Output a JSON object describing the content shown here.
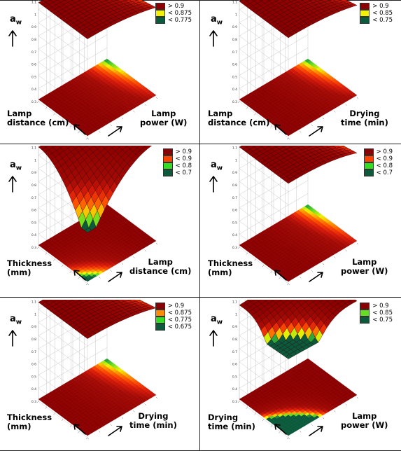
{
  "response_label": "a",
  "response_sub": "w",
  "colors": {
    "dark_red": "#8b0000",
    "red": "#e11",
    "orange": "#ff8c00",
    "yellow": "#f2f200",
    "lime": "#33dd22",
    "green": "#1f7a3e",
    "dark_green": "#0b5a3c"
  },
  "chart_data": [
    {
      "type": "surface",
      "xlabel": "Lamp power (W)",
      "ylabel": "Lamp distance (cm)",
      "zlabel": "aw",
      "legend": [
        {
          "label": "> 0.9",
          "color": "#8b0000"
        },
        {
          "label": "< 0.875",
          "color": "#f2f200"
        },
        {
          "label": "< 0.775",
          "color": "#0b5a3c"
        }
      ],
      "z_ticks": [
        "0.3",
        "0.4",
        "0.5",
        "0.6",
        "0.7",
        "0.8",
        "0.9",
        "1",
        "1.1"
      ]
    },
    {
      "type": "surface",
      "xlabel": "Drying time (min)",
      "ylabel": "Lamp distance (cm)",
      "zlabel": "aw",
      "legend": [
        {
          "label": "> 0.9",
          "color": "#8b0000"
        },
        {
          "label": "< 0.85",
          "color": "#f2f200"
        },
        {
          "label": "< 0.75",
          "color": "#0b5a3c"
        }
      ],
      "z_ticks": [
        "0.3",
        "0.4",
        "0.5",
        "0.6",
        "0.7",
        "0.8",
        "0.9",
        "1",
        "1.1"
      ]
    },
    {
      "type": "surface",
      "xlabel": "Lamp distance (cm)",
      "ylabel": "Thickness (mm)",
      "zlabel": "aw",
      "legend": [
        {
          "label": "> 0.9",
          "color": "#8b0000"
        },
        {
          "label": "< 0.9",
          "color": "#ff4400"
        },
        {
          "label": "< 0.8",
          "color": "#33dd22"
        },
        {
          "label": "< 0.7",
          "color": "#0b5a3c"
        }
      ],
      "z_ticks": [
        "0.3",
        "0.4",
        "0.5",
        "0.6",
        "0.7",
        "0.8",
        "0.9",
        "1",
        "1.1"
      ]
    },
    {
      "type": "surface",
      "xlabel": "Lamp power (W)",
      "ylabel": "Thickness (mm)",
      "zlabel": "aw",
      "legend": [
        {
          "label": "> 0.9",
          "color": "#8b0000"
        },
        {
          "label": "< 0.9",
          "color": "#ff4400"
        },
        {
          "label": "< 0.8",
          "color": "#33dd22"
        },
        {
          "label": "< 0.7",
          "color": "#0b5a3c"
        }
      ],
      "z_ticks": [
        "0.3",
        "0.4",
        "0.5",
        "0.6",
        "0.7",
        "0.8",
        "0.9",
        "1",
        "1.1"
      ]
    },
    {
      "type": "surface",
      "xlabel": "Drying time (min)",
      "ylabel": "Thickness (mm)",
      "zlabel": "aw",
      "legend": [
        {
          "label": "> 0.9",
          "color": "#8b0000"
        },
        {
          "label": "< 0.875",
          "color": "#ff8c00"
        },
        {
          "label": "< 0.775",
          "color": "#33dd22"
        },
        {
          "label": "< 0.675",
          "color": "#0b5a3c"
        }
      ],
      "z_ticks": [
        "0.3",
        "0.4",
        "0.5",
        "0.6",
        "0.7",
        "0.8",
        "0.9",
        "1",
        "1.1"
      ]
    },
    {
      "type": "surface",
      "xlabel": "Lamp power (W)",
      "ylabel": "Drying time (min)",
      "zlabel": "aw",
      "legend": [
        {
          "label": "> 0.9",
          "color": "#8b0000"
        },
        {
          "label": "< 0.85",
          "color": "#66dd22"
        },
        {
          "label": "< 0.75",
          "color": "#0b5a3c"
        }
      ],
      "z_ticks": [
        "0.3",
        "0.4",
        "0.5",
        "0.6",
        "0.7",
        "0.8",
        "0.9",
        "1",
        "1.1"
      ]
    }
  ],
  "panels": [
    {
      "left_l1": "Lamp",
      "left_l2": "distance (cm)",
      "right_l1": "Lamp",
      "right_l2": "power (W)"
    },
    {
      "left_l1": "Lamp",
      "left_l2": "distance (cm)",
      "right_l1": "Drying",
      "right_l2": "time (min)"
    },
    {
      "left_l1": "Thickness",
      "left_l2": "(mm)",
      "right_l1": "Lamp",
      "right_l2": "distance (cm)"
    },
    {
      "left_l1": "Thickness",
      "left_l2": "(mm)",
      "right_l1": "Lamp",
      "right_l2": "power (W)"
    },
    {
      "left_l1": "Thickness",
      "left_l2": "(mm)",
      "right_l1": "Drying",
      "right_l2": "time (min)"
    },
    {
      "left_l1": "Drying",
      "left_l2": "time (min)",
      "right_l1": "Lamp",
      "right_l2": "power (W)"
    }
  ]
}
